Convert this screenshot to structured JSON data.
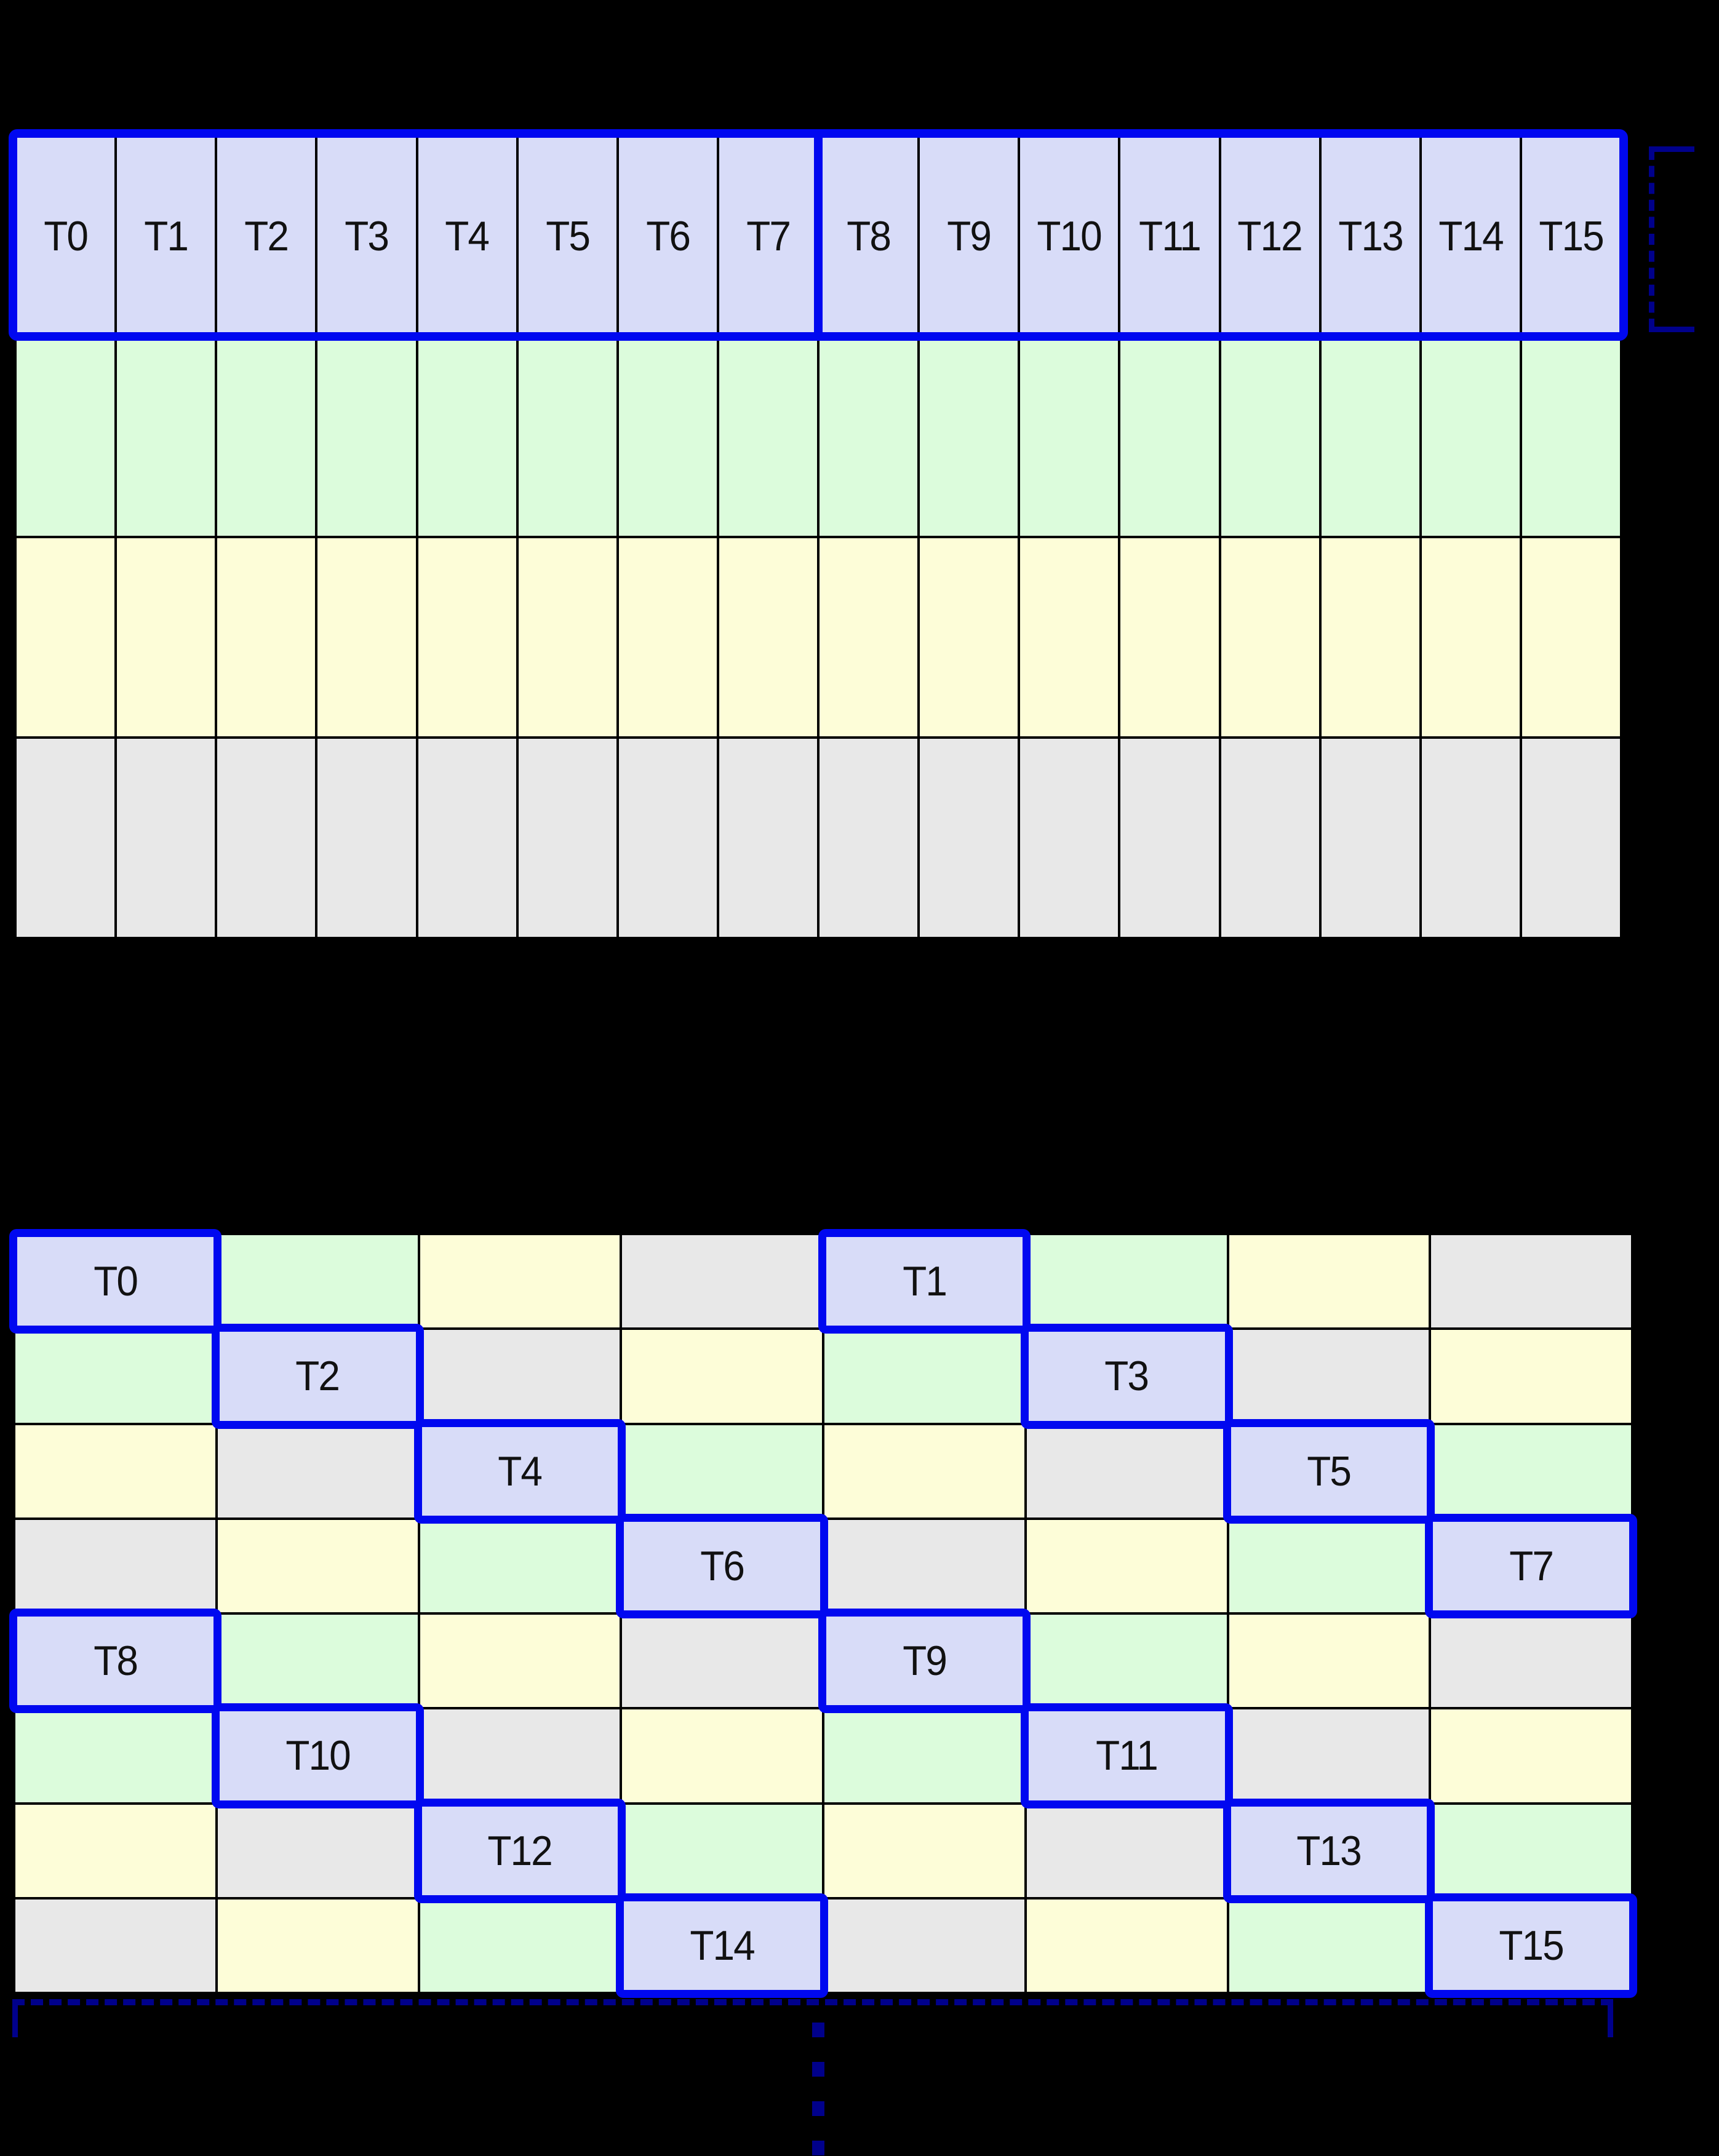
{
  "colors": {
    "background": "#000000",
    "lavender": "#d8dcf8",
    "green": "#dcfcdc",
    "yellow": "#fdfdd8",
    "gray": "#e8e8e8",
    "thread_border_blue": "#0008f0",
    "bracket_navy": "#00008b",
    "grid_line_black": "#000000",
    "label_text": "#111111"
  },
  "grid1": {
    "rows": 4,
    "cols": 16,
    "row_colors": [
      "lavender",
      "green",
      "yellow",
      "gray"
    ],
    "thread_labels": [
      "T0",
      "T1",
      "T2",
      "T3",
      "T4",
      "T5",
      "T6",
      "T7",
      "T8",
      "T9",
      "T10",
      "T11",
      "T12",
      "T13",
      "T14",
      "T15"
    ],
    "half_split_after_col": 8
  },
  "grid2": {
    "rows": 8,
    "cols": 8,
    "row_patterns": [
      [
        "lavender",
        "green",
        "yellow",
        "gray",
        "lavender",
        "green",
        "yellow",
        "gray"
      ],
      [
        "green",
        "lavender",
        "gray",
        "yellow",
        "green",
        "lavender",
        "gray",
        "yellow"
      ],
      [
        "yellow",
        "gray",
        "lavender",
        "green",
        "yellow",
        "gray",
        "lavender",
        "green"
      ],
      [
        "gray",
        "yellow",
        "green",
        "lavender",
        "gray",
        "yellow",
        "green",
        "lavender"
      ],
      [
        "lavender",
        "green",
        "yellow",
        "gray",
        "lavender",
        "green",
        "yellow",
        "gray"
      ],
      [
        "green",
        "lavender",
        "gray",
        "yellow",
        "green",
        "lavender",
        "gray",
        "yellow"
      ],
      [
        "yellow",
        "gray",
        "lavender",
        "green",
        "yellow",
        "gray",
        "lavender",
        "green"
      ],
      [
        "gray",
        "yellow",
        "green",
        "lavender",
        "gray",
        "yellow",
        "green",
        "lavender"
      ]
    ],
    "thread_cells": [
      {
        "row": 0,
        "col": 0,
        "label": "T0"
      },
      {
        "row": 0,
        "col": 4,
        "label": "T1"
      },
      {
        "row": 1,
        "col": 1,
        "label": "T2"
      },
      {
        "row": 1,
        "col": 5,
        "label": "T3"
      },
      {
        "row": 2,
        "col": 2,
        "label": "T4"
      },
      {
        "row": 2,
        "col": 6,
        "label": "T5"
      },
      {
        "row": 3,
        "col": 3,
        "label": "T6"
      },
      {
        "row": 3,
        "col": 7,
        "label": "T7"
      },
      {
        "row": 4,
        "col": 0,
        "label": "T8"
      },
      {
        "row": 4,
        "col": 4,
        "label": "T9"
      },
      {
        "row": 5,
        "col": 1,
        "label": "T10"
      },
      {
        "row": 5,
        "col": 5,
        "label": "T11"
      },
      {
        "row": 6,
        "col": 2,
        "label": "T12"
      },
      {
        "row": 6,
        "col": 6,
        "label": "T13"
      },
      {
        "row": 7,
        "col": 3,
        "label": "T14"
      },
      {
        "row": 7,
        "col": 7,
        "label": "T15"
      }
    ]
  },
  "annotations": {
    "row_bracket_style": "dashed-navy-right-of-first-row",
    "bottom_bracket_style": "dashed-navy-below-grid",
    "ellipsis_dash_count": 4
  }
}
